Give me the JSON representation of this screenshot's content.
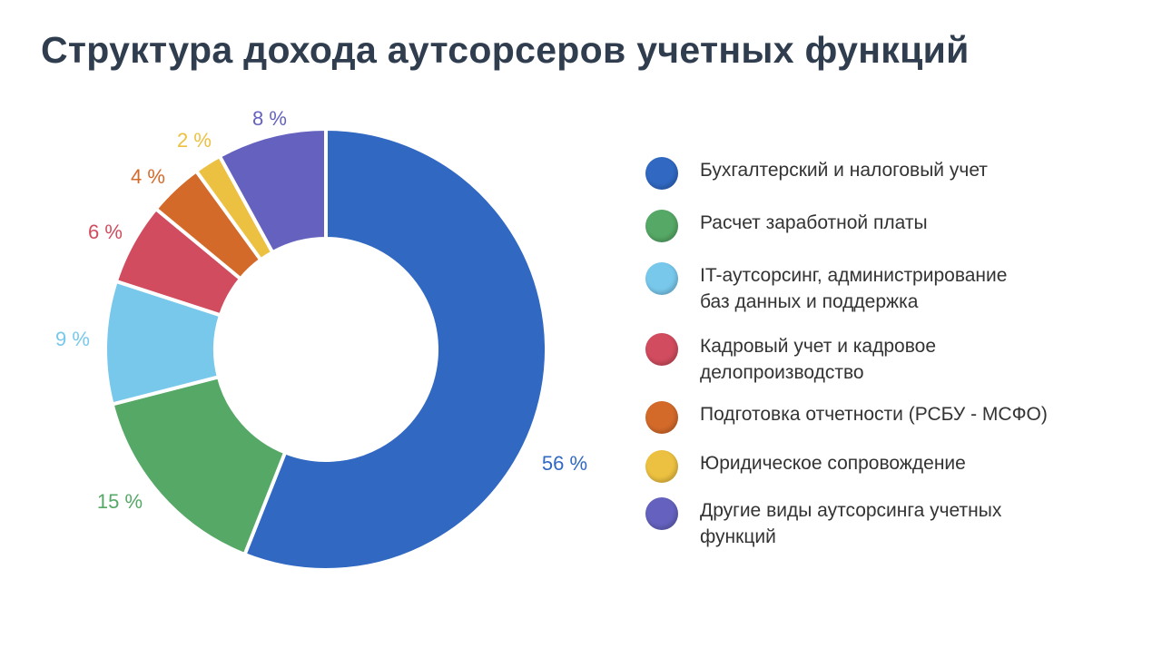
{
  "chart_data": {
    "type": "pie",
    "title": "Структура дохода аутсорсеров учетных функций",
    "donut": true,
    "legend_position": "right",
    "categories": [
      "Бухгалтерский и налоговый учет",
      "Расчет заработной платы",
      "IT-аутсорсинг, администрирование баз данных и поддержка",
      "Кадровый учет и кадровое делопроизводство",
      "Подготовка отчетности (РСБУ - МСФО)",
      "Юридическое сопровождение",
      "Другие виды аутсорсинга учетных функций"
    ],
    "legend_lines": [
      [
        "Бухгалтерский и налоговый учет"
      ],
      [
        "Расчет заработной платы"
      ],
      [
        "IT-аутсорсинг, администрирование",
        "баз данных и поддержка"
      ],
      [
        "Кадровый учет и кадровое",
        "делопроизводство"
      ],
      [
        "Подготовка отчетности (РСБУ - МСФО)"
      ],
      [
        "Юридическое сопровождение"
      ],
      [
        "Другие виды аутсорсинга учетных",
        "функций"
      ]
    ],
    "values": [
      56,
      15,
      9,
      6,
      4,
      2,
      8
    ],
    "labels": [
      "56 %",
      "15 %",
      "9 %",
      "6 %",
      "4 %",
      "2 %",
      "8 %"
    ],
    "colors": [
      "#3068c2",
      "#56a866",
      "#78c8ec",
      "#d04c5e",
      "#d36a2a",
      "#ecc040",
      "#6462be"
    ]
  }
}
